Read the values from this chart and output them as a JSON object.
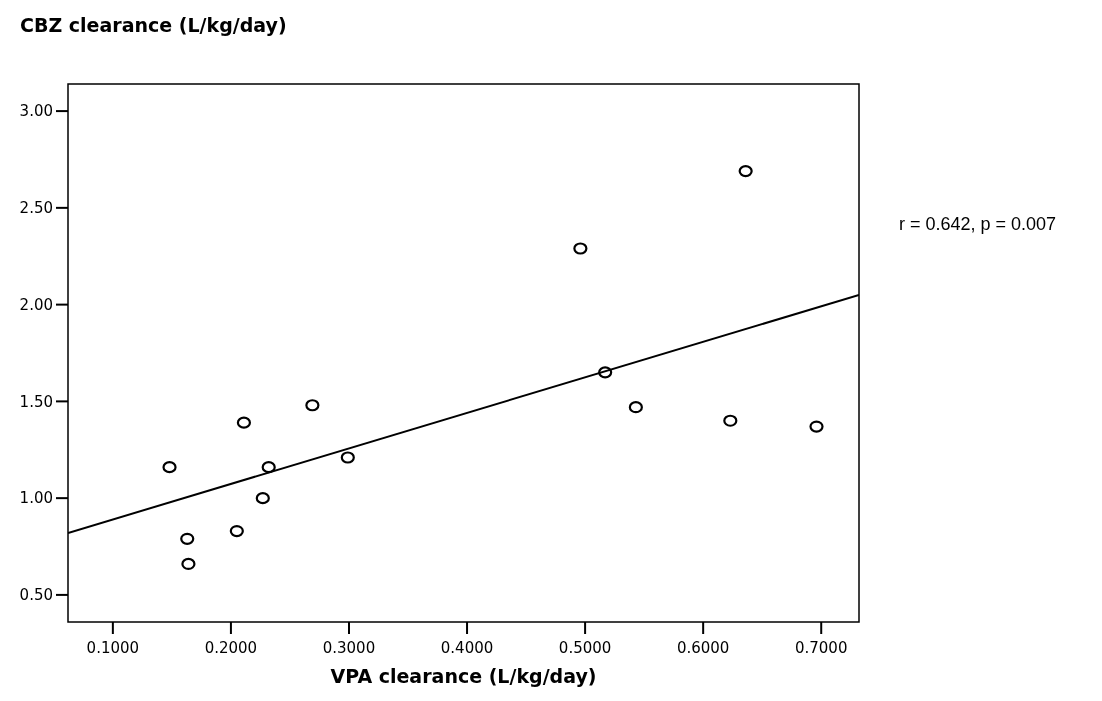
{
  "chart_data": {
    "type": "scatter",
    "ylabel": "CBZ clearance (L/kg/day)",
    "xlabel": "VPA clearance (L/kg/day)",
    "annotations": [
      "r = 0.642, p = 0.007"
    ],
    "xlim": [
      0.062,
      0.732
    ],
    "ylim": [
      0.36,
      3.14
    ],
    "xticks": [
      {
        "value": 0.1,
        "label": "0.1000"
      },
      {
        "value": 0.2,
        "label": "0.2000"
      },
      {
        "value": 0.3,
        "label": "0.3000"
      },
      {
        "value": 0.4,
        "label": "0.4000"
      },
      {
        "value": 0.5,
        "label": "0.5000"
      },
      {
        "value": 0.6,
        "label": "0.6000"
      },
      {
        "value": 0.7,
        "label": "0.7000"
      }
    ],
    "yticks": [
      {
        "value": 0.5,
        "label": "0.50"
      },
      {
        "value": 1,
        "label": "1.00"
      },
      {
        "value": 1.5,
        "label": "1.50"
      },
      {
        "value": 2,
        "label": "2.00"
      },
      {
        "value": 2.5,
        "label": "2.50"
      },
      {
        "value": 3,
        "label": "3.00"
      }
    ],
    "grid": false,
    "series": [
      {
        "marker": "circle",
        "color": "#000000",
        "x": [
          0.148,
          0.163,
          0.164,
          0.205,
          0.211,
          0.227,
          0.232,
          0.269,
          0.299,
          0.496,
          0.517,
          0.543,
          0.623,
          0.636,
          0.696
        ],
        "values": [
          1.16,
          0.79,
          0.66,
          0.83,
          1.39,
          1.0,
          1.16,
          1.48,
          1.21,
          2.29,
          1.65,
          1.47,
          1.4,
          2.69,
          1.37
        ]
      },
      {
        "type": "line",
        "marker": "none",
        "line_style": "solid",
        "color": "#000000",
        "x": [
          0.062,
          0.732
        ],
        "values": [
          0.82,
          2.05
        ]
      }
    ]
  }
}
